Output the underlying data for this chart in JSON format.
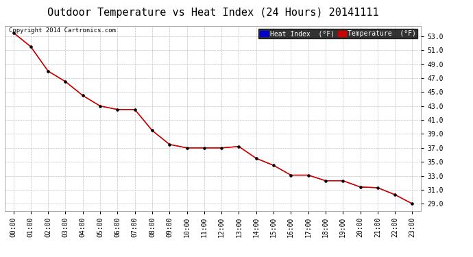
{
  "title": "Outdoor Temperature vs Heat Index (24 Hours) 20141111",
  "copyright": "Copyright 2014 Cartronics.com",
  "legend_heat_index": "Heat Index  (°F)",
  "legend_temperature": "Temperature  (°F)",
  "x_labels": [
    "00:00",
    "01:00",
    "02:00",
    "03:00",
    "04:00",
    "05:00",
    "06:00",
    "07:00",
    "08:00",
    "09:00",
    "10:00",
    "11:00",
    "12:00",
    "13:00",
    "14:00",
    "15:00",
    "16:00",
    "17:00",
    "18:00",
    "19:00",
    "20:00",
    "21:00",
    "22:00",
    "23:00"
  ],
  "temperature": [
    53.5,
    51.5,
    48.0,
    46.5,
    44.5,
    43.0,
    42.5,
    42.5,
    39.5,
    37.5,
    37.0,
    37.0,
    37.0,
    37.2,
    35.5,
    34.5,
    33.1,
    33.1,
    32.3,
    32.3,
    31.4,
    31.3,
    30.3,
    29.0
  ],
  "heat_index": [
    53.5,
    51.5,
    48.0,
    46.5,
    44.5,
    43.0,
    42.5,
    42.5,
    39.5,
    37.5,
    37.0,
    37.0,
    37.0,
    37.2,
    35.5,
    34.5,
    33.1,
    33.1,
    32.3,
    32.3,
    31.4,
    31.3,
    30.3,
    29.0
  ],
  "ylim_min": 28.0,
  "ylim_max": 54.5,
  "yticks": [
    29.0,
    31.0,
    33.0,
    35.0,
    37.0,
    39.0,
    41.0,
    43.0,
    45.0,
    47.0,
    49.0,
    51.0,
    53.0
  ],
  "line_color": "#cc0000",
  "marker_color": "#000000",
  "grid_color": "#bbbbbb",
  "bg_color": "#ffffff",
  "title_fontsize": 11,
  "copyright_fontsize": 6.5,
  "tick_fontsize": 7,
  "legend_fontsize": 7
}
